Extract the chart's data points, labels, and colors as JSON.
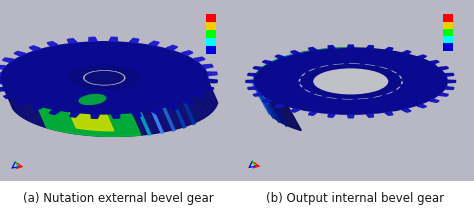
{
  "figsize": [
    4.74,
    2.18
  ],
  "dpi": 100,
  "bg_color": "#c8c8d0",
  "caption_left": "(a) Nutation external bevel gear",
  "caption_right": "(b) Output internal bevel gear",
  "caption_fontsize": 8.5,
  "caption_color": "#1a1a1a",
  "white_bg": "#ffffff",
  "gear_dark": "#050560",
  "gear_mid": "#0a0a90",
  "gear_bright": "#1515cc",
  "gear_side": "#080870",
  "green1": "#00bb33",
  "green2": "#44dd00",
  "cyan1": "#00aacc",
  "yellow1": "#ccdd00",
  "cb_colors": [
    "#ff0000",
    "#ffcc00",
    "#00ff00",
    "#00ffff",
    "#0000dd"
  ],
  "axis_colors": [
    "#ff0000",
    "#00cc00",
    "#0000ff"
  ],
  "panel_bg": "#b8b8c4"
}
